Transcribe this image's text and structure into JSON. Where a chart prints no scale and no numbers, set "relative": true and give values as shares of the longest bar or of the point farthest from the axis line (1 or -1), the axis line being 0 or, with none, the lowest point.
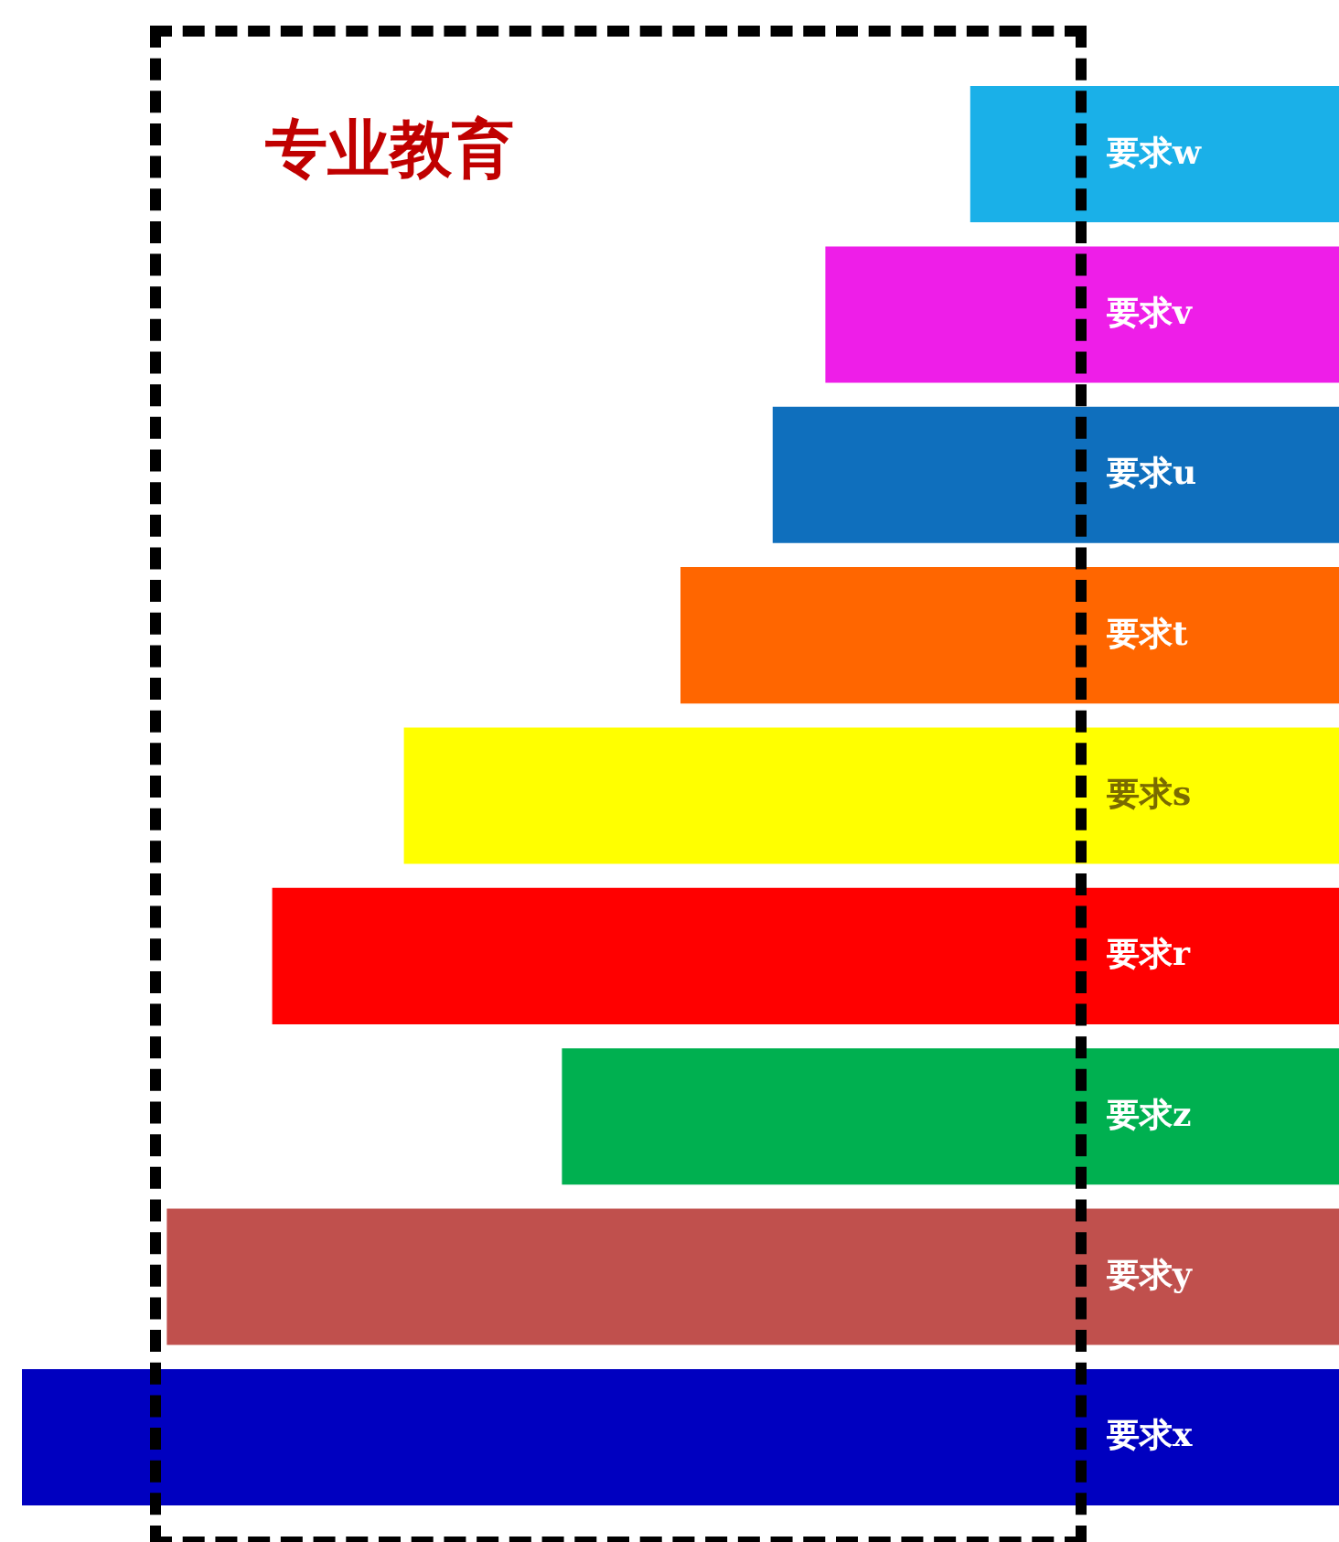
{
  "chart_data": {
    "type": "bar",
    "orientation": "horizontal",
    "relative": true,
    "title": "专业教育",
    "categories": [
      "要求w",
      "要求v",
      "要求u",
      "要求t",
      "要求s",
      "要求r",
      "要求z",
      "要求y",
      "要求x"
    ],
    "values": [
      0.28,
      0.39,
      0.43,
      0.5,
      0.71,
      0.81,
      0.59,
      0.89,
      1
    ],
    "colors": [
      "#1ab0e8",
      "#ee1ee8",
      "#0f6fbd",
      "#ff6600",
      "#ffff00",
      "#ff0000",
      "#00b050",
      "#c0504d",
      "#0000c0"
    ]
  }
}
